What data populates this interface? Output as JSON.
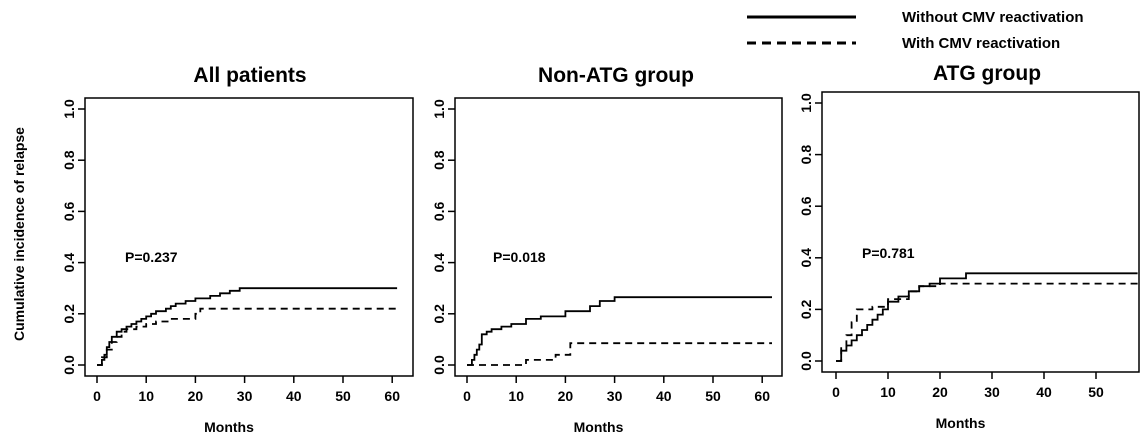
{
  "legend": {
    "items": [
      {
        "label": "Without CMV reactivation",
        "style": "solid"
      },
      {
        "label": "With CMV reactivation",
        "style": "dashed"
      }
    ],
    "placement": "top-right"
  },
  "chart_data": [
    {
      "type": "line",
      "step": true,
      "title": "All patients",
      "xlabel": "Months",
      "ylabel": "Cumulative incidence of relapse",
      "xlim": [
        0,
        62
      ],
      "ylim": [
        0,
        1.0
      ],
      "xticks": [
        "0",
        "10",
        "20",
        "30",
        "40",
        "50",
        "60"
      ],
      "yticks": [
        "0.0",
        "0.2",
        "0.4",
        "0.6",
        "0.8",
        "1.0"
      ],
      "annotation": "P=0.237",
      "series": [
        {
          "name": "Without CMV reactivation",
          "style": "solid",
          "x": [
            0,
            1,
            1.5,
            2,
            2.5,
            3,
            4,
            5,
            6,
            7,
            8,
            9,
            10,
            11,
            12,
            14,
            15,
            16,
            18,
            20,
            23,
            25,
            27,
            29,
            61
          ],
          "y": [
            0,
            0.02,
            0.04,
            0.07,
            0.09,
            0.11,
            0.13,
            0.14,
            0.15,
            0.16,
            0.17,
            0.18,
            0.19,
            0.2,
            0.21,
            0.22,
            0.23,
            0.24,
            0.25,
            0.26,
            0.27,
            0.28,
            0.29,
            0.3,
            0.3
          ]
        },
        {
          "name": "With CMV reactivation",
          "style": "dashed",
          "x": [
            0,
            1,
            2,
            3,
            4,
            5,
            6,
            8,
            10,
            12,
            15,
            20,
            21,
            61
          ],
          "y": [
            0,
            0.03,
            0.06,
            0.09,
            0.11,
            0.13,
            0.14,
            0.15,
            0.16,
            0.17,
            0.18,
            0.2,
            0.22,
            0.22
          ]
        }
      ]
    },
    {
      "type": "line",
      "step": true,
      "title": "Non-ATG group",
      "xlabel": "Months",
      "ylabel": "",
      "xlim": [
        0,
        62
      ],
      "ylim": [
        0,
        1.0
      ],
      "xticks": [
        "0",
        "10",
        "20",
        "30",
        "40",
        "50",
        "60"
      ],
      "yticks": [
        "0.0",
        "0.2",
        "0.4",
        "0.6",
        "0.8",
        "1.0"
      ],
      "annotation": "P=0.018",
      "series": [
        {
          "name": "Without CMV reactivation",
          "style": "solid",
          "x": [
            0,
            1,
            1.5,
            2,
            2.5,
            3,
            4,
            5,
            7,
            9,
            12,
            15,
            20,
            25,
            27,
            30,
            62
          ],
          "y": [
            0,
            0.02,
            0.04,
            0.06,
            0.08,
            0.12,
            0.13,
            0.14,
            0.15,
            0.16,
            0.18,
            0.19,
            0.21,
            0.23,
            0.25,
            0.265,
            0.265
          ]
        },
        {
          "name": "With CMV reactivation",
          "style": "dashed",
          "x": [
            0,
            12,
            18,
            21,
            62
          ],
          "y": [
            0,
            0.02,
            0.04,
            0.085,
            0.085
          ]
        }
      ]
    },
    {
      "type": "line",
      "step": true,
      "title": "ATG group",
      "xlabel": "Months",
      "ylabel": "",
      "xlim": [
        0,
        58
      ],
      "ylim": [
        0,
        1.0
      ],
      "xticks": [
        "0",
        "10",
        "20",
        "30",
        "40",
        "50"
      ],
      "yticks": [
        "0.0",
        "0.2",
        "0.4",
        "0.6",
        "0.8",
        "1.0"
      ],
      "annotation": "P=0.781",
      "series": [
        {
          "name": "Without CMV reactivation",
          "style": "solid",
          "x": [
            0,
            1,
            2,
            3,
            4,
            5,
            6,
            7,
            8,
            9,
            10,
            12,
            14,
            16,
            18,
            20,
            25,
            58
          ],
          "y": [
            0,
            0.04,
            0.06,
            0.08,
            0.1,
            0.12,
            0.14,
            0.16,
            0.18,
            0.2,
            0.23,
            0.25,
            0.27,
            0.29,
            0.3,
            0.32,
            0.34,
            0.34
          ]
        },
        {
          "name": "With CMV reactivation",
          "style": "dashed",
          "x": [
            0,
            1,
            2,
            3,
            4,
            7,
            10,
            14,
            16,
            20,
            58
          ],
          "y": [
            0,
            0.05,
            0.1,
            0.15,
            0.2,
            0.21,
            0.24,
            0.27,
            0.29,
            0.3,
            0.3
          ]
        }
      ]
    }
  ]
}
